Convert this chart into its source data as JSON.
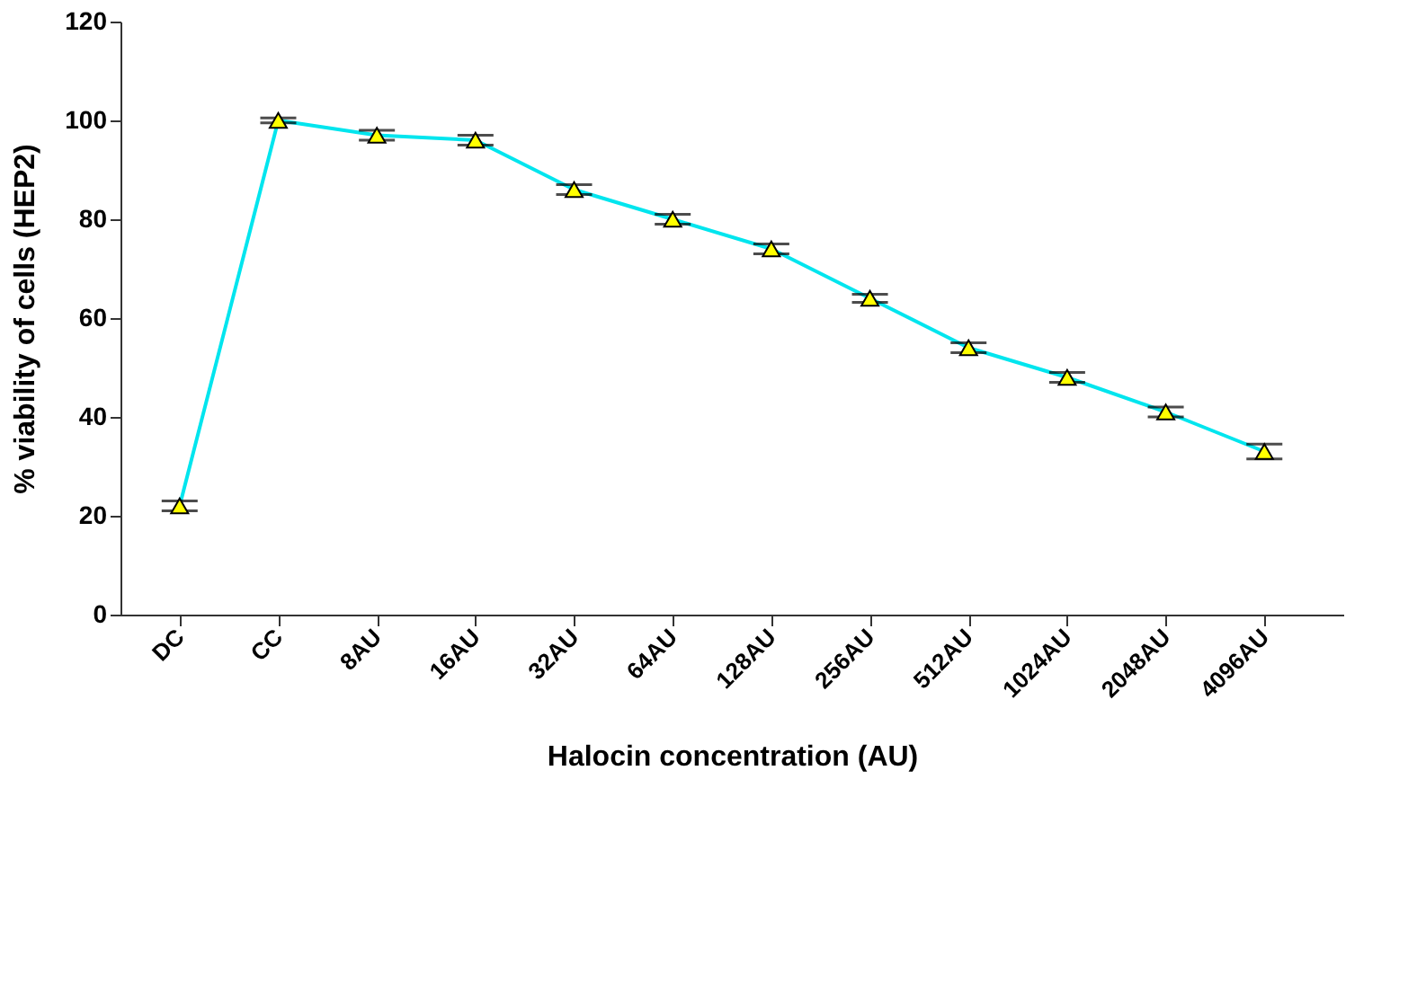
{
  "chart_data": {
    "type": "line",
    "xlabel": "Halocin concentration (AU)",
    "ylabel": "% viability of cells (HEP2)",
    "categories": [
      "DC",
      "CC",
      "8AU",
      "16AU",
      "32AU",
      "64AU",
      "128AU",
      "256AU",
      "512AU",
      "1024AU",
      "2048AU",
      "4096AU"
    ],
    "series": [
      {
        "color": "#00e5ee",
        "values": [
          22,
          100,
          97,
          96,
          86,
          80,
          74,
          64,
          54,
          48,
          41,
          33
        ],
        "errors": [
          1,
          0.5,
          1,
          1,
          1,
          1,
          1,
          0.8,
          1,
          1,
          1,
          1.5
        ]
      }
    ],
    "ylim": [
      0,
      120
    ],
    "yticks": [
      0,
      20,
      40,
      60,
      80,
      100,
      120
    ],
    "grid": false,
    "marker": "triangle",
    "line_style": "solid"
  }
}
